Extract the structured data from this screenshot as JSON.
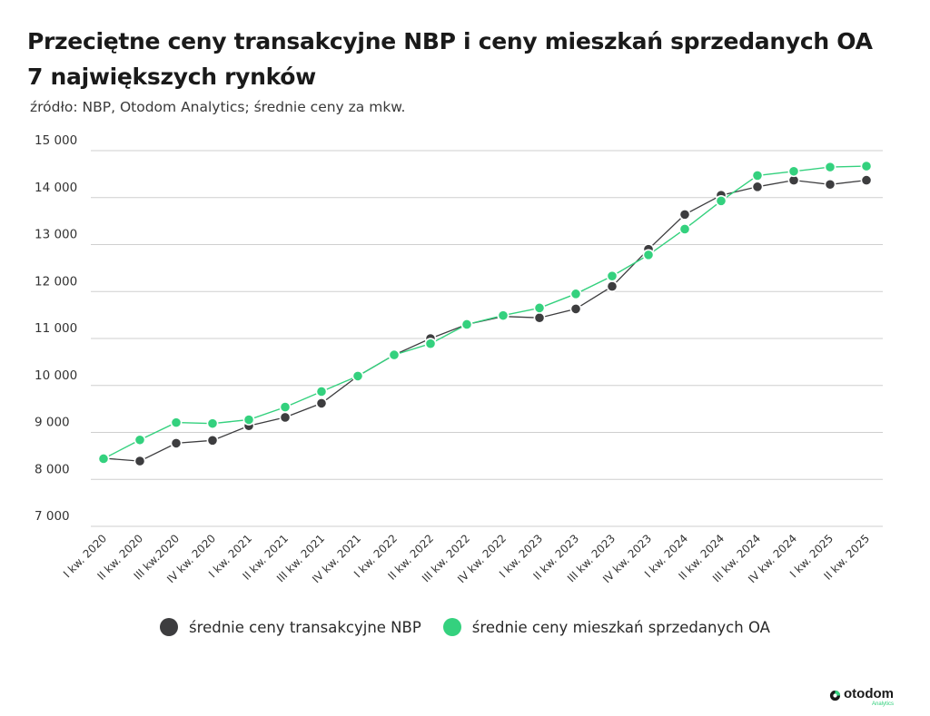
{
  "header": {
    "title_line1": "Przeciętne ceny transakcyjne NBP i ceny mieszkań sprzedanych OA",
    "title_line2": "7 największych rynków",
    "subtitle": "źródło: NBP, Otodom Analytics; średnie ceny za mkw."
  },
  "legend": {
    "items": [
      {
        "label": "średnie ceny transakcyjne NBP",
        "color": "#3d3d3f"
      },
      {
        "label": "średnie ceny mieszkań sprzedanych OA",
        "color": "#34d17e"
      }
    ]
  },
  "logo": {
    "name": "otodom",
    "sub": "Analytics"
  },
  "chart_data": {
    "type": "line",
    "categories": [
      "I kw. 2020",
      "II kw. 2020",
      "III kw.2020",
      "IV kw. 2020",
      "I kw. 2021",
      "II kw. 2021",
      "III kw. 2021",
      "IV kw. 2021",
      "I kw. 2022",
      "II kw. 2022",
      "III kw. 2022",
      "IV kw. 2022",
      "I kw. 2023",
      "II kw. 2023",
      "III kw. 2023",
      "IV kw. 2023",
      "I kw. 2024",
      "II kw. 2024",
      "III kw. 2024",
      "IV kw. 2024",
      "I kw. 2025",
      "II kw. 2025"
    ],
    "series": [
      {
        "name": "średnie ceny transakcyjne NBP",
        "color": "#3d3d3f",
        "values": [
          8450,
          8390,
          8770,
          8830,
          9140,
          9320,
          9620,
          10200,
          10650,
          11000,
          11300,
          11470,
          11440,
          11630,
          12110,
          12900,
          13640,
          14050,
          14230,
          14370,
          14280,
          14370
        ]
      },
      {
        "name": "średnie ceny mieszkań sprzedanych OA",
        "color": "#34d17e",
        "values": [
          8440,
          8840,
          9210,
          9190,
          9270,
          9540,
          9870,
          10200,
          10650,
          10890,
          11300,
          11490,
          11650,
          11950,
          12330,
          12780,
          13330,
          13930,
          14470,
          14560,
          14650,
          14670
        ]
      }
    ],
    "yticks": [
      "7 000",
      "8 000",
      "9 000",
      "10 000",
      "11 000",
      "12 000",
      "13 000",
      "14 000",
      "15 000"
    ],
    "ylim": [
      7000,
      15000
    ],
    "grid": true,
    "legend_position": "bottom"
  }
}
